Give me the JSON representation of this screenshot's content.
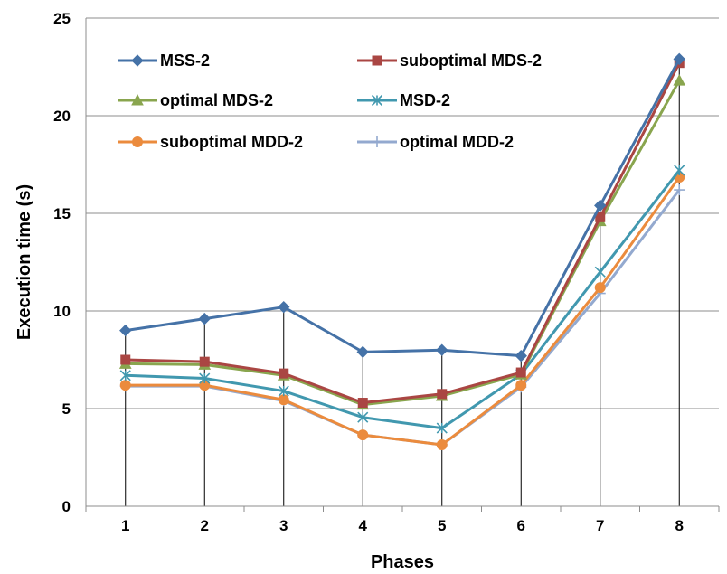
{
  "chart_data": {
    "type": "line",
    "xlabel": "Phases",
    "ylabel": "Execution time (s)",
    "x": [
      1,
      2,
      3,
      4,
      5,
      6,
      7,
      8
    ],
    "ylim": [
      0,
      25
    ],
    "yticks": [
      0,
      5,
      10,
      15,
      20,
      25
    ],
    "grid": "horizontal",
    "drop_lines": true,
    "legend_position": "top-left-inside",
    "series": [
      {
        "name": "MSS-2",
        "color": "#4572a7",
        "marker": "diamond",
        "values": [
          9.0,
          9.6,
          10.2,
          7.9,
          8.0,
          7.7,
          15.4,
          22.9
        ]
      },
      {
        "name": "suboptimal MDS-2",
        "color": "#aa4643",
        "marker": "square",
        "values": [
          7.5,
          7.4,
          6.8,
          5.3,
          5.75,
          6.85,
          14.8,
          22.7
        ]
      },
      {
        "name": "optimal MDS-2",
        "color": "#89a54e",
        "marker": "triangle",
        "values": [
          7.3,
          7.25,
          6.7,
          5.2,
          5.65,
          6.75,
          14.6,
          21.8
        ]
      },
      {
        "name": "MSD-2",
        "color": "#4198af",
        "marker": "asterisk",
        "values": [
          6.7,
          6.55,
          5.9,
          4.55,
          4.0,
          6.75,
          12.0,
          17.2
        ]
      },
      {
        "name": "suboptimal MDD-2",
        "color": "#eb8b3d",
        "marker": "circle",
        "values": [
          6.2,
          6.2,
          5.45,
          3.65,
          3.15,
          6.2,
          11.2,
          16.85
        ]
      },
      {
        "name": "optimal MDD-2",
        "color": "#93a9cf",
        "marker": "plus",
        "values": [
          6.15,
          6.15,
          5.4,
          3.65,
          3.15,
          6.1,
          10.9,
          16.2
        ]
      }
    ]
  }
}
